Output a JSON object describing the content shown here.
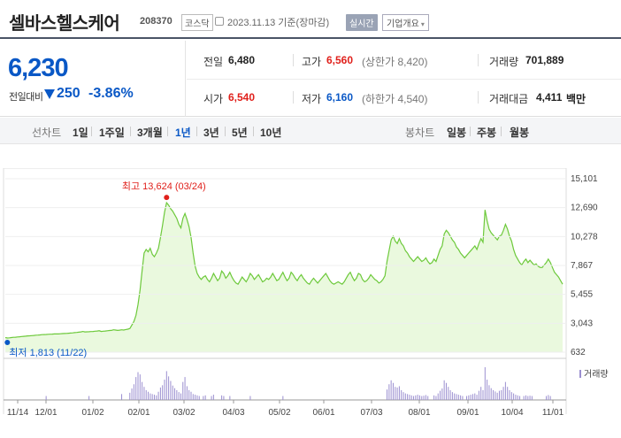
{
  "header": {
    "stock_name": "셀바스헬스케어",
    "stock_code": "208370",
    "market": "코스닥",
    "date_text": "2023.11.13  기준(장마감)",
    "realtime_label": "실시간",
    "company_overview_label": "기업개요"
  },
  "quote": {
    "price": "6,230",
    "change_label": "전일대비",
    "change_value": "250",
    "change_pct": "-3.86%",
    "prev_label": "전일",
    "prev_value": "6,480",
    "high_label": "고가",
    "high_value": "6,560",
    "upper_limit": "(상한가 8,420)",
    "volume_label": "거래량",
    "volume_value": "701,889",
    "open_label": "시가",
    "open_value": "6,540",
    "low_label": "저가",
    "low_value": "6,160",
    "lower_limit": "(하한가 4,540)",
    "amount_label": "거래대금",
    "amount_value": "4,411",
    "amount_unit": "백만"
  },
  "periods": {
    "line_chart_label": "선차트",
    "items": [
      "1일",
      "1주일",
      "3개월",
      "1년",
      "3년",
      "5년",
      "10년"
    ],
    "active": "1년",
    "candle_label": "봉차트",
    "candle_items": [
      "일봉",
      "주봉",
      "월봉"
    ]
  },
  "colors": {
    "price_up": "#e0201b",
    "price_down": "#0a58c6",
    "area_fill": "#eaf9de",
    "line": "#6dc93b",
    "volume_bar": "#9b8fd0"
  },
  "chart_data": {
    "type": "area",
    "title": "",
    "xlabel": "",
    "ylabel": "",
    "ylim": [
      632,
      15101
    ],
    "y_ticks": [
      "15,101",
      "12,690",
      "10,278",
      "7,867",
      "5,455",
      "3,043",
      "632"
    ],
    "x_ticks": [
      "11/14",
      "12/01",
      "01/02",
      "02/01",
      "03/02",
      "04/03",
      "05/02",
      "06/01",
      "07/03",
      "08/01",
      "09/01",
      "10/04",
      "11/01"
    ],
    "max_annotation": "최고 13,624 (03/24)",
    "min_annotation": "최저 1,813 (11/22)",
    "volume_legend": "거래량",
    "series": [
      {
        "values": [
          1850,
          1813,
          1830,
          1850,
          1870,
          1880,
          1900,
          1920,
          1940,
          1950,
          1970,
          1990,
          2000,
          2010,
          2030,
          2050,
          2060,
          2070,
          2090,
          2100,
          2110,
          2120,
          2130,
          2140,
          2150,
          2160,
          2150,
          2170,
          2180,
          2190,
          2200,
          2210,
          2230,
          2240,
          2260,
          2280,
          2300,
          2320,
          2360,
          2320,
          2330,
          2340,
          2350,
          2360,
          2380,
          2400,
          2420,
          2360,
          2380,
          2400,
          2420,
          2440,
          2450,
          2500,
          2480,
          2450,
          2470,
          2500,
          2480,
          2520,
          2550,
          2600,
          2900,
          3200,
          3700,
          4600,
          5800,
          7400,
          8900,
          9200,
          9000,
          9300,
          8800,
          8600,
          8900,
          9300,
          10200,
          11200,
          12300,
          13100,
          12900,
          12600,
          12400,
          12100,
          11800,
          11300,
          11000,
          11800,
          12200,
          11700,
          11100,
          10200,
          8900,
          7800,
          7200,
          6900,
          6700,
          6900,
          7000,
          6700,
          6500,
          6800,
          7200,
          6900,
          6600,
          6800,
          7400,
          7200,
          6800,
          7000,
          7300,
          6900,
          6600,
          6400,
          6300,
          6600,
          6900,
          6700,
          6500,
          6800,
          7200,
          7000,
          6700,
          6900,
          7100,
          6800,
          6500,
          6600,
          6800,
          6700,
          6900,
          7200,
          6900,
          6600,
          6700,
          7000,
          7300,
          6900,
          6600,
          6800,
          7300,
          7100,
          6800,
          6600,
          6900,
          7100,
          6800,
          6600,
          6400,
          6300,
          6600,
          6800,
          6600,
          6400,
          6600,
          6800,
          7000,
          7200,
          6900,
          6600,
          6400,
          6300,
          6400,
          6500,
          6400,
          6300,
          6500,
          6800,
          7100,
          7300,
          6900,
          6600,
          6800,
          7200,
          7100,
          6700,
          6500,
          6600,
          6800,
          7100,
          6900,
          6700,
          6600,
          6400,
          6500,
          6700,
          7000,
          8200,
          9100,
          10000,
          10300,
          9900,
          9700,
          10100,
          9700,
          9500,
          9100,
          8900,
          8600,
          8400,
          8200,
          8400,
          8600,
          8400,
          8200,
          8300,
          8500,
          8200,
          8000,
          8100,
          8400,
          8200,
          8700,
          9200,
          9500,
          10500,
          10800,
          10600,
          10300,
          10000,
          9800,
          9400,
          9200,
          8900,
          8700,
          8500,
          8700,
          8900,
          9100,
          9300,
          9500,
          9200,
          9700,
          10100,
          9800,
          12500,
          11600,
          10900,
          10600,
          10400,
          10200,
          10000,
          10300,
          10400,
          10800,
          11300,
          10900,
          10300,
          9900,
          9200,
          8700,
          8400,
          8100,
          7900,
          8200,
          8400,
          8100,
          8300,
          8100,
          7900,
          8000,
          7800,
          7700,
          7700,
          7900,
          8100,
          8400,
          8100,
          7700,
          7300,
          7100,
          6900,
          6600,
          6300
        ]
      }
    ],
    "volume": [
      8,
      6,
      5,
      7,
      6,
      5,
      4,
      6,
      5,
      6,
      7,
      5,
      6,
      5,
      8,
      6,
      5,
      7,
      6,
      5,
      12,
      6,
      5,
      7,
      6,
      5,
      10,
      6,
      5,
      7,
      6,
      5,
      4,
      6,
      5,
      6,
      7,
      5,
      8,
      5,
      6,
      12,
      5,
      6,
      7,
      5,
      6,
      5,
      9,
      6,
      5,
      7,
      6,
      5,
      8,
      6,
      5,
      18,
      6,
      7,
      8,
      22,
      35,
      48,
      70,
      85,
      78,
      55,
      40,
      30,
      25,
      20,
      18,
      16,
      14,
      25,
      38,
      45,
      62,
      88,
      72,
      58,
      44,
      36,
      30,
      24,
      20,
      55,
      70,
      42,
      30,
      25,
      18,
      16,
      14,
      12,
      10,
      12,
      14,
      10,
      9,
      12,
      16,
      10,
      8,
      10,
      14,
      12,
      9,
      10,
      12,
      9,
      8,
      7,
      6,
      8,
      10,
      8,
      6,
      8,
      12,
      9,
      7,
      8,
      10,
      8,
      6,
      7,
      8,
      7,
      9,
      11,
      8,
      6,
      7,
      9,
      12,
      8,
      6,
      7,
      11,
      9,
      7,
      6,
      8,
      10,
      8,
      6,
      5,
      4,
      6,
      8,
      6,
      5,
      6,
      8,
      9,
      11,
      8,
      6,
      5,
      4,
      5,
      6,
      5,
      4,
      6,
      8,
      10,
      11,
      8,
      6,
      7,
      10,
      9,
      7,
      5,
      6,
      8,
      10,
      8,
      7,
      6,
      5,
      6,
      7,
      9,
      32,
      48,
      60,
      52,
      40,
      38,
      42,
      30,
      24,
      20,
      18,
      16,
      14,
      12,
      14,
      16,
      14,
      12,
      13,
      15,
      12,
      10,
      11,
      14,
      12,
      20,
      28,
      35,
      60,
      52,
      40,
      30,
      24,
      20,
      18,
      16,
      14,
      12,
      10,
      12,
      14,
      16,
      18,
      20,
      16,
      28,
      40,
      30,
      100,
      62,
      45,
      36,
      30,
      26,
      22,
      28,
      30,
      40,
      55,
      40,
      30,
      24,
      20,
      16,
      14,
      12,
      10,
      12,
      14,
      12,
      13,
      12,
      10,
      11,
      9,
      8,
      8,
      10,
      12,
      15,
      12,
      9,
      7,
      6,
      5,
      6,
      7
    ]
  }
}
